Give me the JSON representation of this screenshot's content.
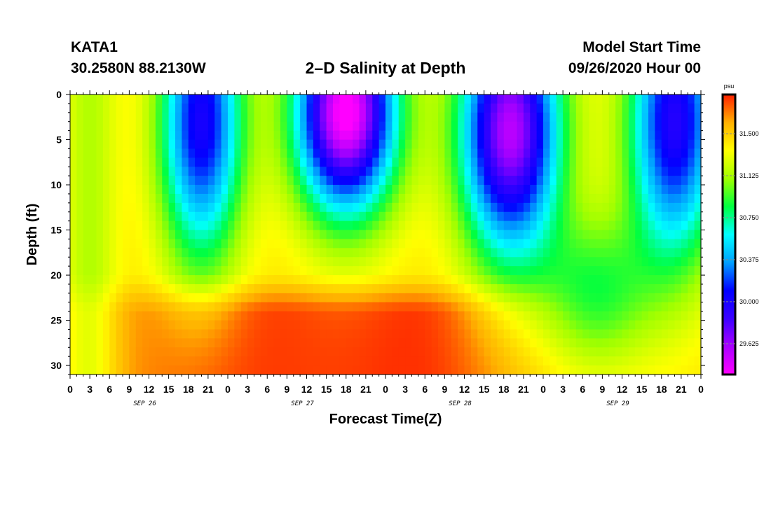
{
  "header": {
    "station": "KATA1",
    "coords": "30.2580N 88.2130W",
    "title": "2–D Salinity at Depth",
    "model_label": "Model Start Time",
    "model_time": "09/26/2020 Hour 00"
  },
  "chart_data": {
    "type": "heatmap",
    "title": "2–D Salinity at Depth",
    "xlabel": "Forecast Time(Z)",
    "ylabel": "Depth (ft)",
    "x_range_hours": [
      0,
      96
    ],
    "y_range": [
      0,
      31
    ],
    "y_inverted": true,
    "x_tick_labels": [
      "0",
      "3",
      "6",
      "9",
      "12",
      "15",
      "18",
      "21",
      "0",
      "3",
      "6",
      "9",
      "12",
      "15",
      "18",
      "21",
      "0",
      "3",
      "6",
      "9",
      "12",
      "15",
      "18",
      "21",
      "0",
      "3",
      "6",
      "9",
      "12",
      "15",
      "18",
      "21",
      "0"
    ],
    "y_ticks": [
      0,
      5,
      10,
      15,
      20,
      25,
      30
    ],
    "date_labels": [
      {
        "text": "SEP 26",
        "hour": 12
      },
      {
        "text": "SEP 27",
        "hour": 36
      },
      {
        "text": "SEP 28",
        "hour": 60
      },
      {
        "text": "SEP 29",
        "hour": 84
      }
    ],
    "colorbar": {
      "unit": "psu",
      "ticks": [
        "31.500",
        "31.125",
        "30.750",
        "30.375",
        "30.000",
        "29.625"
      ],
      "tick_values": [
        31.5,
        31.125,
        30.75,
        30.375,
        30.0,
        29.625
      ],
      "range": [
        29.35,
        31.85
      ],
      "colors": [
        "#ff00ff",
        "#aa00ff",
        "#3a00ff",
        "#0000ff",
        "#00a0ff",
        "#00ffff",
        "#00ff40",
        "#a0ff00",
        "#ffff00",
        "#ffb000",
        "#ff2000"
      ]
    },
    "notes": "Salinity field: low (29.4-30.5 psu) near surface in pulses around Sep 26 18-24Z, Sep 27 09-20Z, Sep 28 06-22Z, Sep 29 15-24Z; high (31.6-31.8 psu) at depth 24-31 ft from Sep 26 06Z to Sep 28 18Z."
  }
}
